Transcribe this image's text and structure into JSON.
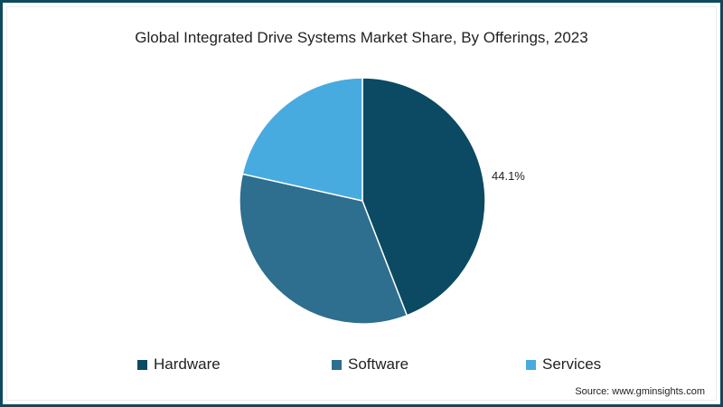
{
  "chart_data": {
    "type": "pie",
    "title": "Global Integrated Drive Systems Market Share, By Offerings, 2023",
    "categories": [
      "Hardware",
      "Software",
      "Services"
    ],
    "values": [
      44.1,
      34.4,
      21.5
    ],
    "colors": [
      "#0b4a62",
      "#2e6e8e",
      "#47abdf"
    ],
    "data_labels": [
      {
        "category": "Hardware",
        "text": "44.1%"
      }
    ],
    "legend_position": "bottom",
    "start_angle": "12 o'clock, clockwise"
  },
  "title": "Global Integrated Drive Systems Market Share, By Offerings, 2023",
  "label_hardware": "44.1%",
  "legend": [
    {
      "label": "Hardware",
      "color": "#0b4a62"
    },
    {
      "label": "Software",
      "color": "#2e6e8e"
    },
    {
      "label": "Services",
      "color": "#47abdf"
    }
  ],
  "source": "Source: www.gminsights.com",
  "frame_color": "#0d4a5e"
}
